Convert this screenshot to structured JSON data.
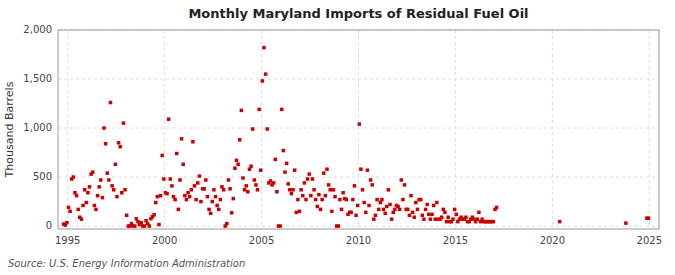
{
  "chart_data": {
    "type": "scatter",
    "title": "Monthly Maryland Imports of Residual Fuel Oil",
    "ylabel": "Thousand Barrels",
    "annotations": [
      "Source: U.S. Energy Information Administration"
    ],
    "color": "#cc0000",
    "marker": "square",
    "grid": true,
    "xlim": [
      1994.5,
      2025.5
    ],
    "ylim": [
      -30,
      2000
    ],
    "xticks": [
      1995,
      2000,
      2005,
      2010,
      2015,
      2020,
      2025
    ],
    "yticks": [
      0,
      500,
      {
        "value": 1000,
        "label": "1,000"
      },
      {
        "value": 1500,
        "label": "1,500"
      },
      {
        "value": 2000,
        "label": "2,000"
      }
    ],
    "x": [
      1994.7916666666667,
      1994.875,
      1994.9583333333333,
      1995.0416666666667,
      1995.125,
      1995.2083333333333,
      1995.2916666666667,
      1995.375,
      1995.4583333333333,
      1995.5416666666667,
      1995.625,
      1995.7083333333333,
      1995.7916666666667,
      1995.875,
      1995.9583333333333,
      1996.0416666666667,
      1996.125,
      1996.2083333333333,
      1996.2916666666667,
      1996.375,
      1996.4583333333333,
      1996.5416666666667,
      1996.625,
      1996.7083333333333,
      1996.7916666666667,
      1996.875,
      1996.9583333333333,
      1997.0416666666667,
      1997.125,
      1997.2083333333333,
      1997.2916666666667,
      1997.375,
      1997.4583333333333,
      1997.5416666666667,
      1997.625,
      1997.7083333333333,
      1997.7916666666667,
      1997.875,
      1997.9583333333333,
      1998.0416666666667,
      1998.125,
      1998.2083333333333,
      1998.2916666666667,
      1998.375,
      1998.4583333333333,
      1998.5416666666667,
      1998.625,
      1998.7083333333333,
      1998.7916666666667,
      1998.875,
      1998.9583333333333,
      1999.0416666666667,
      1999.125,
      1999.2083333333333,
      1999.2916666666667,
      1999.375,
      1999.4583333333333,
      1999.5416666666667,
      1999.625,
      1999.7083333333333,
      1999.7916666666667,
      1999.875,
      1999.9583333333333,
      2000.0416666666667,
      2000.125,
      2000.2083333333333,
      2000.2916666666667,
      2000.375,
      2000.4583333333333,
      2000.5416666666667,
      2000.625,
      2000.7083333333333,
      2000.7916666666667,
      2000.875,
      2000.9583333333333,
      2001.0416666666667,
      2001.125,
      2001.2083333333333,
      2001.2916666666667,
      2001.375,
      2001.4583333333333,
      2001.5416666666667,
      2001.625,
      2001.7083333333333,
      2001.7916666666667,
      2001.875,
      2001.9583333333333,
      2002.0416666666667,
      2002.125,
      2002.2083333333333,
      2002.2916666666667,
      2002.375,
      2002.4583333333333,
      2002.5416666666667,
      2002.625,
      2002.7083333333333,
      2002.7916666666667,
      2002.875,
      2002.9583333333333,
      2003.0416666666667,
      2003.125,
      2003.2083333333333,
      2003.2916666666667,
      2003.375,
      2003.4583333333333,
      2003.5416666666667,
      2003.625,
      2003.7083333333333,
      2003.7916666666667,
      2003.875,
      2003.9583333333333,
      2004.0416666666667,
      2004.125,
      2004.2083333333333,
      2004.2916666666667,
      2004.375,
      2004.4583333333333,
      2004.5416666666667,
      2004.625,
      2004.7083333333333,
      2004.7916666666667,
      2004.875,
      2004.9583333333333,
      2005.0416666666667,
      2005.125,
      2005.2083333333333,
      2005.2916666666667,
      2005.375,
      2005.4583333333333,
      2005.5416666666667,
      2005.625,
      2005.7083333333333,
      2005.7916666666667,
      2005.875,
      2005.9583333333333,
      2006.0416666666667,
      2006.125,
      2006.2083333333333,
      2006.2916666666667,
      2006.375,
      2006.4583333333333,
      2006.5416666666667,
      2006.625,
      2006.7083333333333,
      2006.7916666666667,
      2006.875,
      2006.9583333333333,
      2007.0416666666667,
      2007.125,
      2007.2083333333333,
      2007.2916666666667,
      2007.375,
      2007.4583333333333,
      2007.5416666666667,
      2007.625,
      2007.7083333333333,
      2007.7916666666667,
      2007.875,
      2007.9583333333333,
      2008.0416666666667,
      2008.125,
      2008.2083333333333,
      2008.2916666666667,
      2008.375,
      2008.4583333333333,
      2008.5416666666667,
      2008.625,
      2008.7083333333333,
      2008.7916666666667,
      2008.875,
      2008.9583333333333,
      2009.0416666666667,
      2009.125,
      2009.2083333333333,
      2009.2916666666667,
      2009.375,
      2009.4583333333333,
      2009.5416666666667,
      2009.625,
      2009.7083333333333,
      2009.7916666666667,
      2009.875,
      2009.9583333333333,
      2010.0416666666667,
      2010.125,
      2010.2083333333333,
      2010.2916666666667,
      2010.375,
      2010.4583333333333,
      2010.5416666666667,
      2010.625,
      2010.7083333333333,
      2010.7916666666667,
      2010.875,
      2010.9583333333333,
      2011.0416666666667,
      2011.125,
      2011.2083333333333,
      2011.2916666666667,
      2011.375,
      2011.4583333333333,
      2011.5416666666667,
      2011.625,
      2011.7083333333333,
      2011.7916666666667,
      2011.875,
      2011.9583333333333,
      2012.0416666666667,
      2012.125,
      2012.2083333333333,
      2012.2916666666667,
      2012.375,
      2012.4583333333333,
      2012.5416666666667,
      2012.625,
      2012.7083333333333,
      2012.7916666666667,
      2012.875,
      2012.9583333333333,
      2013.0416666666667,
      2013.125,
      2013.2083333333333,
      2013.2916666666667,
      2013.375,
      2013.4583333333333,
      2013.5416666666667,
      2013.625,
      2013.7083333333333,
      2013.7916666666667,
      2013.875,
      2013.9583333333333,
      2014.0416666666667,
      2014.125,
      2014.2083333333333,
      2014.2916666666667,
      2014.375,
      2014.4583333333333,
      2014.5416666666667,
      2014.625,
      2014.7083333333333,
      2014.7916666666667,
      2014.875,
      2014.9583333333333,
      2015.0416666666667,
      2015.125,
      2015.2083333333333,
      2015.2916666666667,
      2015.375,
      2015.4583333333333,
      2015.5416666666667,
      2015.625,
      2015.7083333333333,
      2015.7916666666667,
      2015.875,
      2015.9583333333333,
      2016.0416666666667,
      2016.125,
      2016.2083333333333,
      2016.2916666666667,
      2016.375,
      2016.4583333333333,
      2016.5416666666667,
      2016.625,
      2016.7083333333333,
      2016.7916666666667,
      2016.875,
      2016.9583333333333,
      2017.0416666666667,
      2017.125,
      2020.375,
      2023.7916666666667,
      2024.875,
      2024.9583333333333
    ],
    "values": [
      20,
      10,
      35,
      190,
      150,
      480,
      500,
      340,
      310,
      170,
      90,
      70,
      210,
      370,
      240,
      340,
      400,
      530,
      550,
      210,
      170,
      310,
      400,
      470,
      290,
      1000,
      840,
      540,
      470,
      1260,
      410,
      370,
      630,
      300,
      850,
      810,
      340,
      1050,
      370,
      110,
      0,
      0,
      25,
      0,
      0,
      75,
      45,
      15,
      35,
      0,
      0,
      55,
      25,
      0,
      75,
      95,
      115,
      240,
      300,
      15,
      310,
      720,
      480,
      340,
      330,
      1090,
      480,
      410,
      300,
      270,
      740,
      170,
      470,
      890,
      630,
      310,
      270,
      340,
      300,
      370,
      860,
      410,
      270,
      440,
      510,
      250,
      380,
      380,
      470,
      300,
      170,
      130,
      250,
      370,
      300,
      210,
      170,
      270,
      400,
      370,
      0,
      25,
      470,
      380,
      135,
      280,
      590,
      670,
      630,
      880,
      1180,
      490,
      370,
      410,
      350,
      580,
      610,
      990,
      470,
      420,
      370,
      1190,
      570,
      1480,
      1820,
      1550,
      990,
      440,
      460,
      420,
      440,
      680,
      350,
      0,
      0,
      1190,
      770,
      550,
      640,
      430,
      370,
      330,
      370,
      570,
      140,
      270,
      150,
      370,
      310,
      440,
      270,
      480,
      530,
      310,
      480,
      370,
      270,
      200,
      320,
      170,
      270,
      540,
      310,
      580,
      420,
      370,
      150,
      370,
      300,
      0,
      0,
      270,
      170,
      340,
      280,
      270,
      120,
      140,
      140,
      270,
      410,
      110,
      210,
      1040,
      580,
      370,
      240,
      140,
      570,
      210,
      470,
      420,
      70,
      110,
      270,
      170,
      240,
      270,
      170,
      130,
      200,
      370,
      220,
      70,
      140,
      170,
      210,
      200,
      170,
      470,
      270,
      420,
      170,
      170,
      110,
      310,
      140,
      90,
      240,
      170,
      270,
      270,
      110,
      70,
      170,
      220,
      120,
      70,
      120,
      210,
      70,
      240,
      70,
      70,
      90,
      170,
      140,
      45,
      90,
      45,
      45,
      70,
      170,
      120,
      45,
      70,
      90,
      70,
      70,
      90,
      45,
      45,
      70,
      90,
      70,
      45,
      70,
      140,
      45,
      70,
      45,
      45,
      45,
      45,
      45,
      45,
      45,
      170,
      190,
      45,
      30,
      80,
      80
    ]
  }
}
